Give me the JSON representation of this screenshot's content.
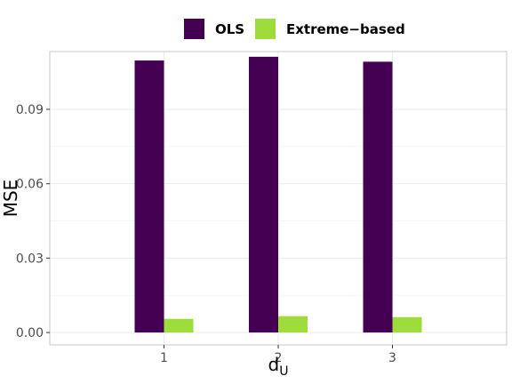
{
  "chart_data": {
    "type": "bar",
    "categories": [
      "1",
      "2",
      "3"
    ],
    "series": [
      {
        "name": "OLS",
        "color": "#440154",
        "values": [
          0.1097,
          0.1112,
          0.1092
        ]
      },
      {
        "name": "Extreme−based",
        "color": "#9ddc3a",
        "values": [
          0.0055,
          0.0066,
          0.0062
        ]
      }
    ],
    "xlabel": "d",
    "xlabel_subscript": "U",
    "ylabel": "MSE",
    "ylim": [
      -0.005,
      0.1133
    ],
    "yticks": [
      {
        "value": 0.0,
        "label": "0.00"
      },
      {
        "value": 0.03,
        "label": "0.03"
      },
      {
        "value": 0.06,
        "label": "0.06"
      },
      {
        "value": 0.09,
        "label": "0.09"
      }
    ],
    "grid": true,
    "legend_position": "top"
  }
}
